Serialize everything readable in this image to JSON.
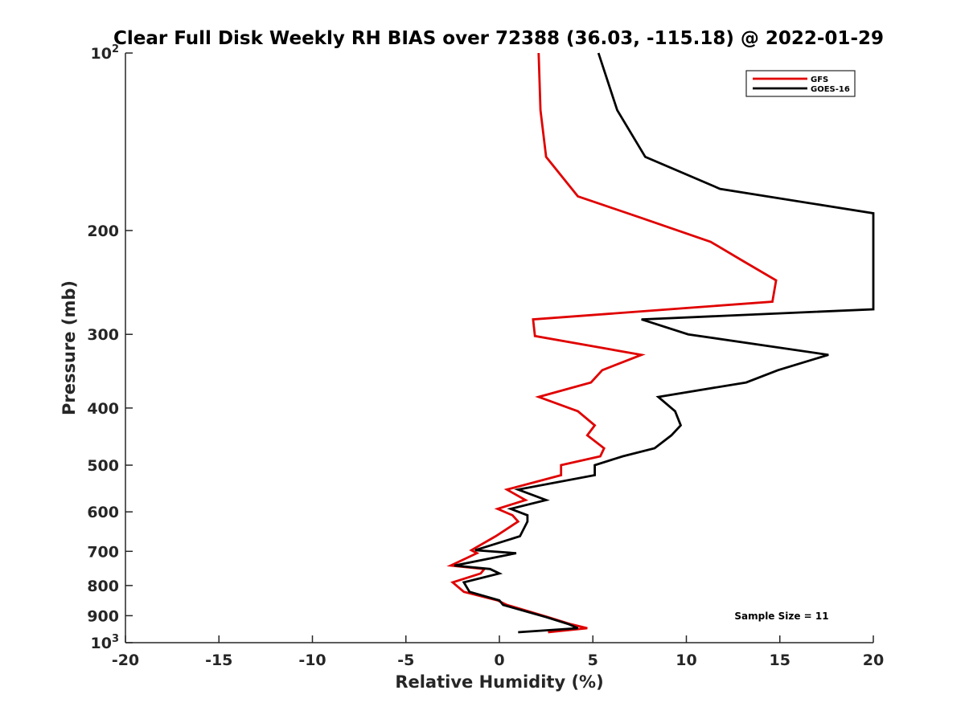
{
  "chart_data": {
    "type": "line",
    "title": "Clear Full Disk Weekly RH BIAS over 72388 (36.03, -115.18) @ 2022-01-29",
    "xlabel": "Relative Humidity (%)",
    "ylabel": "Pressure (mb)",
    "xlim": [
      -20,
      20
    ],
    "ylim": [
      100,
      1000
    ],
    "y_scale": "log",
    "y_reversed": true,
    "grid": false,
    "x_ticks": [
      {
        "value": -20,
        "label": "-20"
      },
      {
        "value": -15,
        "label": "-15"
      },
      {
        "value": -10,
        "label": "-10"
      },
      {
        "value": -5,
        "label": "-5"
      },
      {
        "value": 0,
        "label": "0"
      },
      {
        "value": 5,
        "label": "5"
      },
      {
        "value": 10,
        "label": "10"
      },
      {
        "value": 15,
        "label": "15"
      },
      {
        "value": 20,
        "label": "20"
      }
    ],
    "y_ticks": [
      {
        "value": 100,
        "base": "10",
        "sup": "2"
      },
      {
        "value": 200,
        "base": "200",
        "sup": ""
      },
      {
        "value": 300,
        "base": "300",
        "sup": ""
      },
      {
        "value": 400,
        "base": "400",
        "sup": ""
      },
      {
        "value": 500,
        "base": "500",
        "sup": ""
      },
      {
        "value": 600,
        "base": "600",
        "sup": ""
      },
      {
        "value": 700,
        "base": "700",
        "sup": ""
      },
      {
        "value": 800,
        "base": "800",
        "sup": ""
      },
      {
        "value": 900,
        "base": "900",
        "sup": ""
      },
      {
        "value": 1000,
        "base": "10",
        "sup": "3"
      }
    ],
    "legend_position": "top-right",
    "annotation": "Sample Size = 11",
    "series": [
      {
        "name": "GFS",
        "color": "#e00000",
        "points": [
          [
            2.1,
            100
          ],
          [
            2.2,
            125
          ],
          [
            2.5,
            150
          ],
          [
            4.2,
            175
          ],
          [
            7.5,
            190
          ],
          [
            11.3,
            209
          ],
          [
            13.0,
            225
          ],
          [
            14.8,
            243
          ],
          [
            14.6,
            264
          ],
          [
            1.8,
            283
          ],
          [
            1.9,
            302
          ],
          [
            7.6,
            325
          ],
          [
            5.5,
            345
          ],
          [
            4.9,
            362
          ],
          [
            2.1,
            383
          ],
          [
            4.2,
            405
          ],
          [
            5.1,
            428
          ],
          [
            4.7,
            445
          ],
          [
            5.6,
            468
          ],
          [
            5.4,
            483
          ],
          [
            3.3,
            500
          ],
          [
            3.3,
            520
          ],
          [
            0.4,
            550
          ],
          [
            1.4,
            573
          ],
          [
            -0.1,
            593
          ],
          [
            0.7,
            608
          ],
          [
            1.0,
            623
          ],
          [
            -0.2,
            660
          ],
          [
            -1.5,
            697
          ],
          [
            -1.2,
            705
          ],
          [
            -2.6,
            740
          ],
          [
            -0.8,
            750
          ],
          [
            -1.0,
            763
          ],
          [
            -2.5,
            790
          ],
          [
            -1.9,
            820
          ],
          [
            -0.1,
            848
          ],
          [
            0.4,
            863
          ],
          [
            2.6,
            905
          ],
          [
            3.8,
            930
          ],
          [
            4.7,
            945
          ],
          [
            2.6,
            960
          ]
        ]
      },
      {
        "name": "GOES-16",
        "color": "#000000",
        "points": [
          [
            5.3,
            100
          ],
          [
            6.3,
            125
          ],
          [
            7.8,
            150
          ],
          [
            11.8,
            170
          ],
          [
            20.0,
            187
          ],
          [
            20.0,
            272
          ],
          [
            7.6,
            283
          ],
          [
            10.1,
            300
          ],
          [
            17.6,
            325
          ],
          [
            14.9,
            345
          ],
          [
            13.2,
            362
          ],
          [
            8.5,
            383
          ],
          [
            9.4,
            405
          ],
          [
            9.7,
            428
          ],
          [
            9.2,
            445
          ],
          [
            8.3,
            468
          ],
          [
            6.6,
            483
          ],
          [
            5.1,
            500
          ],
          [
            5.1,
            520
          ],
          [
            1.0,
            550
          ],
          [
            2.5,
            573
          ],
          [
            0.6,
            593
          ],
          [
            1.5,
            608
          ],
          [
            1.5,
            623
          ],
          [
            1.1,
            660
          ],
          [
            -1.3,
            697
          ],
          [
            0.9,
            705
          ],
          [
            -2.4,
            740
          ],
          [
            -0.5,
            750
          ],
          [
            0.0,
            763
          ],
          [
            -1.9,
            790
          ],
          [
            -1.6,
            820
          ],
          [
            0.0,
            848
          ],
          [
            0.2,
            863
          ],
          [
            2.5,
            905
          ],
          [
            3.7,
            930
          ],
          [
            4.2,
            945
          ],
          [
            1.0,
            960
          ]
        ]
      }
    ]
  }
}
